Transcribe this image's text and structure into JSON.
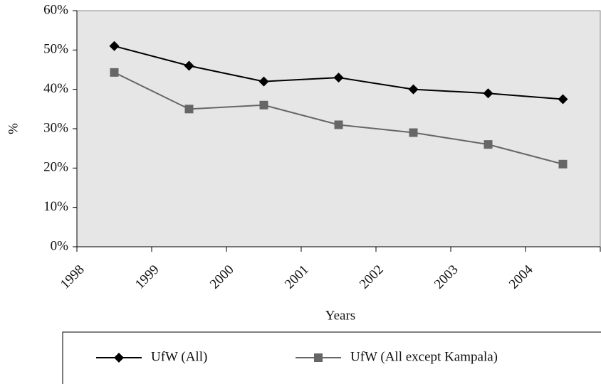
{
  "chart_data": {
    "type": "line",
    "categories": [
      "1998",
      "1999",
      "2000",
      "2001",
      "2002",
      "2003",
      "2004"
    ],
    "series": [
      {
        "name": "UfW (All)",
        "color": "#000000",
        "marker": "diamond",
        "values": [
          51,
          46,
          42,
          43,
          40,
          39,
          37.5
        ]
      },
      {
        "name": "UfW (All except Kampala)",
        "color": "#666666",
        "marker": "square",
        "values": [
          44.3,
          35,
          36,
          31,
          29,
          26,
          21
        ]
      }
    ],
    "x_label": "Years",
    "y_label": "%",
    "ylim": [
      0,
      60
    ],
    "yticks": [
      {
        "value": 0,
        "label": "0%"
      },
      {
        "value": 10,
        "label": "10%"
      },
      {
        "value": 20,
        "label": "20%"
      },
      {
        "value": 30,
        "label": "30%"
      },
      {
        "value": 40,
        "label": "40%"
      },
      {
        "value": 50,
        "label": "50%"
      },
      {
        "value": 60,
        "label": "60%"
      }
    ],
    "plot_background": "#e6e6e6"
  }
}
